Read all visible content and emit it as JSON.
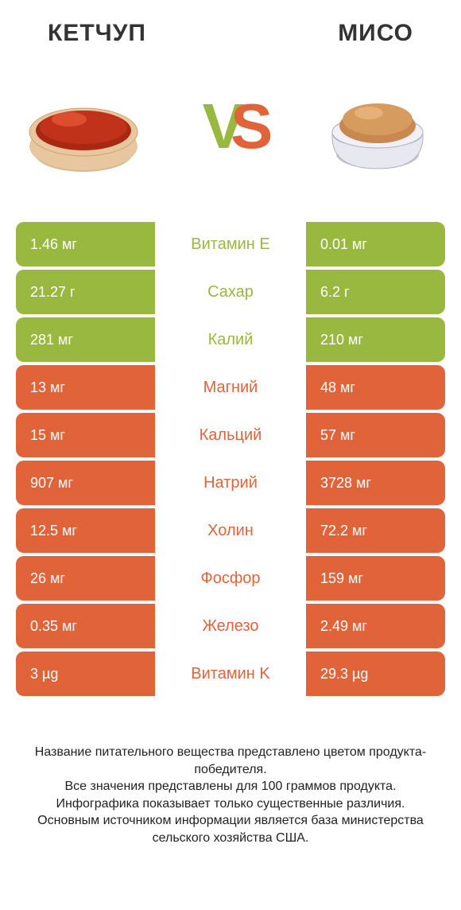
{
  "titles": {
    "left": "КЕТЧУП",
    "right": "МИСО"
  },
  "vs": {
    "v": "V",
    "s": "S"
  },
  "colors": {
    "left_win": "#98b83f",
    "right_win": "#e1633a",
    "white": "#ffffff",
    "text": "#333333"
  },
  "illus": {
    "ketchup": {
      "bowl": "#e8c6a0",
      "sauce": "#c1321b",
      "highlight": "#e85a3a"
    },
    "miso": {
      "bowl": "#e8e8f0",
      "paste": "#d69b5f",
      "highlight": "#e8b77d"
    }
  },
  "rows": [
    {
      "nutrient": "Витамин E",
      "left": "1.46 мг",
      "right": "0.01 мг",
      "winner": "left"
    },
    {
      "nutrient": "Сахар",
      "left": "21.27 г",
      "right": "6.2 г",
      "winner": "left"
    },
    {
      "nutrient": "Калий",
      "left": "281 мг",
      "right": "210 мг",
      "winner": "left"
    },
    {
      "nutrient": "Магний",
      "left": "13 мг",
      "right": "48 мг",
      "winner": "right"
    },
    {
      "nutrient": "Кальций",
      "left": "15 мг",
      "right": "57 мг",
      "winner": "right"
    },
    {
      "nutrient": "Натрий",
      "left": "907 мг",
      "right": "3728 мг",
      "winner": "right"
    },
    {
      "nutrient": "Холин",
      "left": "12.5 мг",
      "right": "72.2 мг",
      "winner": "right"
    },
    {
      "nutrient": "Фосфор",
      "left": "26 мг",
      "right": "159 мг",
      "winner": "right"
    },
    {
      "nutrient": "Железо",
      "left": "0.35 мг",
      "right": "2.49 мг",
      "winner": "right"
    },
    {
      "nutrient": "Витамин K",
      "left": "3 µg",
      "right": "29.3 µg",
      "winner": "right"
    }
  ],
  "footer": "Название питательного вещества представлено цветом продукта-победителя.\nВсе значения представлены для 100 граммов продукта.\nИнфографика показывает только существенные различия.\nОсновным источником информации является база министерства сельского хозяйства США."
}
